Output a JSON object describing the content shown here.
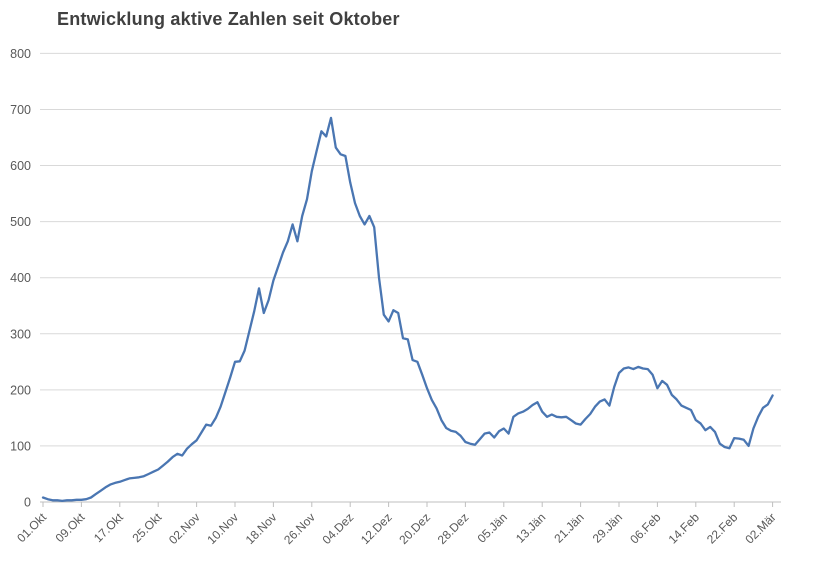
{
  "title": "Entwicklung aktive Zahlen seit Oktober",
  "colors": {
    "line": "#4a76b2",
    "grid": "#d9d9d9",
    "axis": "#bfbfbf",
    "tick": "#bfbfbf",
    "tick_label": "#595959",
    "title": "#404040",
    "background": "#ffffff"
  },
  "chart_data": {
    "type": "line",
    "title": "Entwicklung aktive Zahlen seit Oktober",
    "xlabel": "",
    "ylabel": "",
    "ylim": [
      0,
      800
    ],
    "y_ticks": [
      0,
      100,
      200,
      300,
      400,
      500,
      600,
      700,
      800
    ],
    "grid": "horizontal",
    "legend": "none",
    "x_tick_labels": [
      "01.Okt",
      "09.Okt",
      "17.Okt",
      "25.Okt",
      "02.Nov",
      "10.Nov",
      "18.Nov",
      "26.Nov",
      "04.Dez",
      "12.Dez",
      "20.Dez",
      "28.Dez",
      "05.Jän",
      "13.Jän",
      "21.Jän",
      "29.Jän",
      "06.Feb",
      "14.Feb",
      "22.Feb",
      "02.Mär"
    ],
    "x_tick_interval_days": 8,
    "x_start_label": "01.Okt",
    "x_end_label": "02.Mär",
    "values": [
      8,
      5,
      3,
      3,
      2,
      3,
      3,
      4,
      4,
      5,
      8,
      14,
      20,
      26,
      31,
      34,
      36,
      39,
      42,
      43,
      44,
      46,
      50,
      54,
      58,
      65,
      72,
      80,
      86,
      83,
      95,
      103,
      110,
      124,
      138,
      136,
      150,
      170,
      196,
      222,
      250,
      251,
      270,
      305,
      340,
      381,
      337,
      360,
      395,
      420,
      445,
      465,
      495,
      465,
      510,
      540,
      590,
      626,
      661,
      652,
      685,
      632,
      620,
      617,
      570,
      533,
      510,
      495,
      510,
      490,
      400,
      334,
      322,
      342,
      337,
      292,
      290,
      253,
      250,
      227,
      203,
      182,
      167,
      146,
      132,
      127,
      125,
      118,
      107,
      104,
      102,
      112,
      122,
      124,
      115,
      126,
      131,
      122,
      152,
      158,
      161,
      166,
      173,
      178,
      161,
      152,
      156,
      152,
      151,
      152,
      146,
      140,
      138,
      148,
      157,
      170,
      179,
      183,
      172,
      205,
      230,
      238,
      240,
      237,
      241,
      238,
      237,
      227,
      203,
      216,
      209,
      191,
      183,
      172,
      168,
      164,
      146,
      140,
      128,
      134,
      125,
      104,
      98,
      96,
      114,
      113,
      111,
      100,
      131,
      152,
      168,
      174,
      190
    ]
  }
}
